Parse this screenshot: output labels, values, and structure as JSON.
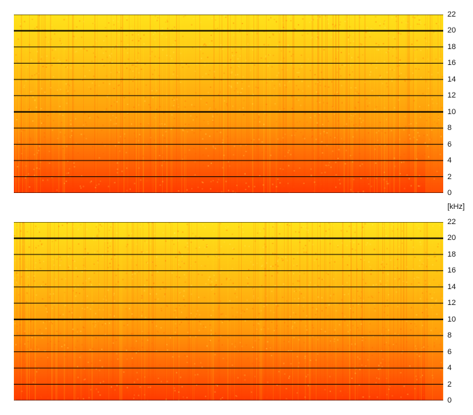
{
  "chart_data": [
    {
      "type": "heatmap",
      "title": "",
      "ylabel": "",
      "ylim": [
        0,
        22
      ],
      "y_ticks": [
        "0",
        "2",
        "4",
        "6",
        "8",
        "10",
        "12",
        "14",
        "16",
        "18",
        "20",
        "22"
      ],
      "y_tick_values": [
        0,
        2,
        4,
        6,
        8,
        10,
        12,
        14,
        16,
        18,
        20,
        22
      ],
      "grid": true,
      "colors": {
        "high_energy": "#ff3a00",
        "mid_energy": "#ff9a0a",
        "low_energy": "#ffe21a"
      }
    },
    {
      "type": "heatmap",
      "title": "",
      "ylabel": "",
      "ylim": [
        0,
        22
      ],
      "y_ticks": [
        "0",
        "2",
        "4",
        "6",
        "8",
        "10",
        "12",
        "14",
        "16",
        "18",
        "20",
        "22"
      ],
      "y_tick_values": [
        0,
        2,
        4,
        6,
        8,
        10,
        12,
        14,
        16,
        18,
        20,
        22
      ],
      "grid": true,
      "colors": {
        "high_energy": "#ff3a00",
        "mid_energy": "#ff9a0a",
        "low_energy": "#ffe21a"
      }
    }
  ],
  "unit_label": "[kHz]"
}
